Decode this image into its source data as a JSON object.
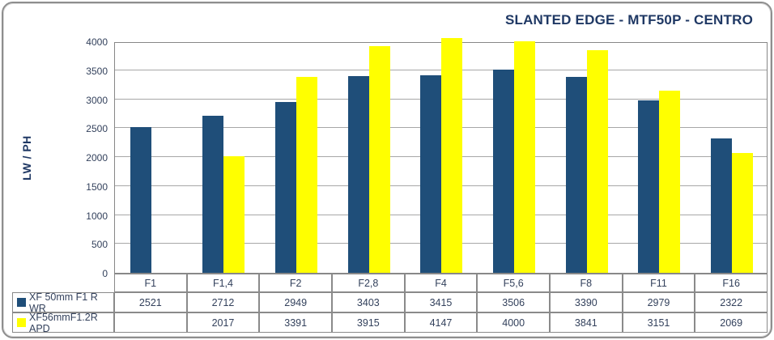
{
  "window": {
    "title": "SLANTED EDGE - MTF50P - CENTRO"
  },
  "chart_data": {
    "type": "bar",
    "title": "SLANTED EDGE - MTF50P - CENTRO",
    "xlabel": "",
    "ylabel": "LW / PH",
    "categories": [
      "F1",
      "F1,4",
      "F2",
      "F2,8",
      "F4",
      "F5,6",
      "F8",
      "F11",
      "F16"
    ],
    "series": [
      {
        "name": "XF 50mm F1 R WR",
        "color": "#1F4E79",
        "values": [
          2521,
          2712,
          2949,
          3403,
          3415,
          3506,
          3390,
          2979,
          2322
        ]
      },
      {
        "name": "XF56mmF1.2R APD",
        "color": "#FFFF00",
        "values": [
          null,
          2017,
          3391,
          3915,
          4147,
          4000,
          3841,
          3151,
          2069
        ]
      }
    ],
    "ylim": [
      0,
      4000
    ],
    "ytick_step": 500,
    "yticks": [
      0,
      500,
      1000,
      1500,
      2000,
      2500,
      3000,
      3500,
      4000
    ],
    "grid": "horizontal",
    "legend_position": "data-table-left",
    "colors": {
      "title_text": "#1F3864",
      "axis_text": "#33415c",
      "gridline": "#8a8a8a",
      "frame_border": "#8e8e8e",
      "plot_background": "#ffffff"
    }
  }
}
